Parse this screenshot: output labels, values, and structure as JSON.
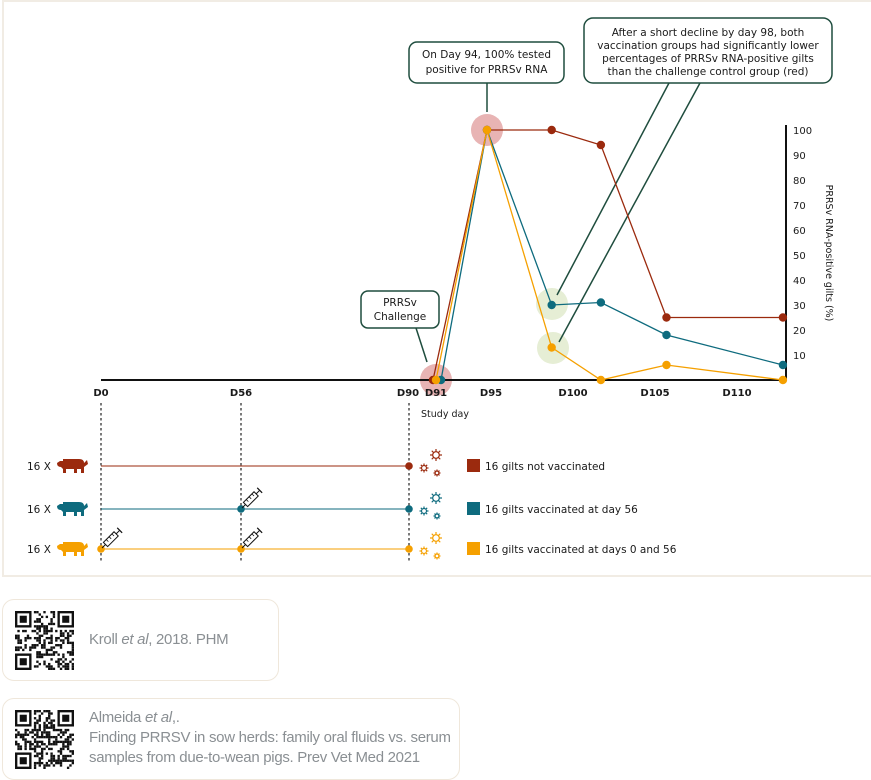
{
  "colors": {
    "not_vaccinated": "#9b2a0e",
    "vaccinated_d56": "#0e6b7e",
    "vaccinated_d0_d56": "#f5a000",
    "callout_border": "#1f4d3e",
    "peak_highlight": "#e8b4b4",
    "decline_highlight": "#e6eed5"
  },
  "callouts": {
    "peak": [
      "On Day 94, 100% tested",
      "positive for PRRSv RNA"
    ],
    "decline": [
      "After a short decline by day 98, both",
      "vaccination groups had significantly lower",
      "percentages of PRRSv RNA-positive gilts",
      "than the challenge control group (red)"
    ],
    "challenge": [
      "PRRSv",
      "Challenge"
    ]
  },
  "chart_data": {
    "type": "line",
    "title": "",
    "xlabel": "Study day",
    "ylabel": "PRRSv RNA-positive gilts (%)",
    "ylim": [
      0,
      100
    ],
    "yticks": [
      10,
      20,
      30,
      40,
      50,
      60,
      70,
      80,
      90,
      100
    ],
    "xtick_labels": [
      "D0",
      "D56",
      "D90",
      "D91",
      "D95",
      "D100",
      "D105",
      "D110"
    ],
    "xtick_days": [
      0,
      56,
      90,
      91,
      95,
      100,
      105,
      110
    ],
    "axis_break_after_day": 90,
    "grid": false,
    "legend_position": "bottom",
    "series": [
      {
        "name": "16 gilts not vaccinated",
        "key": "not_vaccinated",
        "x": [
          91,
          94,
          98.7,
          101.7,
          105.7,
          112.8
        ],
        "y": [
          0,
          100,
          100,
          94,
          25,
          25
        ]
      },
      {
        "name": "16 gilts vaccinated at day 56",
        "key": "vaccinated_d56",
        "x": [
          91,
          94,
          98.7,
          101.7,
          105.7,
          112.8
        ],
        "y": [
          0,
          100,
          30,
          31,
          18,
          6
        ]
      },
      {
        "name": "16 gilts vaccinated at days 0 and 56",
        "key": "vaccinated_d0_d56",
        "x": [
          91,
          94,
          98.7,
          101.7,
          105.7,
          112.8
        ],
        "y": [
          0,
          100,
          13,
          0,
          6,
          0
        ]
      }
    ]
  },
  "timeline": {
    "groups": [
      {
        "count_label": "16 X",
        "key": "not_vaccinated",
        "vaccination_days": [],
        "legend": "16 gilts not vaccinated"
      },
      {
        "count_label": "16 X",
        "key": "vaccinated_d56",
        "vaccination_days": [
          56
        ],
        "legend": "16 gilts vaccinated at day 56"
      },
      {
        "count_label": "16 X",
        "key": "vaccinated_d0_d56",
        "vaccination_days": [
          0,
          56
        ],
        "legend": "16 gilts vaccinated at days 0 and 56"
      }
    ],
    "challenge_day": 90
  },
  "references": [
    {
      "author": "Kroll",
      "etal": "et al",
      "rest": ", 2018. PHM",
      "lines": []
    },
    {
      "author": "Almeida",
      "etal": "et al",
      "rest": ",.",
      "lines": [
        "Finding PRRSV in sow herds: family oral fluids vs. serum",
        "samples from due-to-wean pigs. Prev Vet Med 2021"
      ]
    }
  ]
}
